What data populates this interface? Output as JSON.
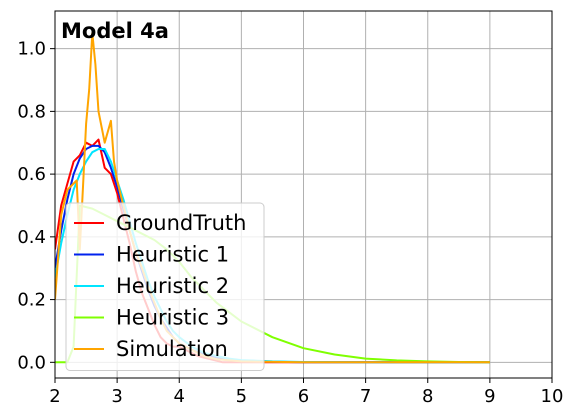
{
  "chart_data": {
    "type": "line",
    "title": "Model 4a",
    "xlabel": "",
    "ylabel": "",
    "xlim": [
      2,
      10
    ],
    "ylim": [
      -0.05,
      1.12
    ],
    "xticks": [
      2,
      3,
      4,
      5,
      6,
      7,
      8,
      9,
      10
    ],
    "yticks": [
      0.0,
      0.2,
      0.4,
      0.6,
      0.8,
      1.0
    ],
    "xtick_labels": [
      "2",
      "3",
      "4",
      "5",
      "6",
      "7",
      "8",
      "9",
      "10"
    ],
    "ytick_labels": [
      "0.0",
      "0.2",
      "0.4",
      "0.6",
      "0.8",
      "1.0"
    ],
    "grid": true,
    "legend_position": "lower-left",
    "series": [
      {
        "name": "GroundTruth",
        "color": "#ff0000",
        "x": [
          2.0,
          2.1,
          2.2,
          2.3,
          2.4,
          2.5,
          2.6,
          2.7,
          2.8,
          2.9,
          3.0,
          3.1,
          3.2,
          3.3,
          3.4,
          3.5,
          3.6,
          3.7,
          3.8,
          3.9,
          4.0,
          4.1,
          4.2,
          4.3,
          4.4,
          4.5,
          4.6,
          4.7,
          5.0,
          6.0,
          7.0,
          8.0,
          9.0
        ],
        "y": [
          0.36,
          0.5,
          0.57,
          0.64,
          0.66,
          0.7,
          0.69,
          0.71,
          0.62,
          0.6,
          0.54,
          0.46,
          0.38,
          0.29,
          0.22,
          0.17,
          0.12,
          0.08,
          0.06,
          0.05,
          0.05,
          0.04,
          0.03,
          0.02,
          0.015,
          0.01,
          0.005,
          0.0,
          0.0,
          0.0,
          0.0,
          0.0,
          0.0
        ]
      },
      {
        "name": "Heuristic 1",
        "color": "#0022ee",
        "x": [
          2.0,
          2.1,
          2.2,
          2.3,
          2.4,
          2.5,
          2.6,
          2.7,
          2.8,
          2.9,
          3.0,
          3.1,
          3.2,
          3.3,
          3.4,
          3.5,
          3.6,
          3.7,
          3.8,
          3.9,
          4.0,
          4.2,
          4.4,
          4.6,
          4.8,
          5.0,
          5.5,
          6.0,
          7.0,
          8.0,
          9.0
        ],
        "y": [
          0.3,
          0.42,
          0.52,
          0.6,
          0.65,
          0.68,
          0.69,
          0.69,
          0.67,
          0.62,
          0.56,
          0.49,
          0.42,
          0.35,
          0.29,
          0.23,
          0.18,
          0.14,
          0.11,
          0.08,
          0.06,
          0.04,
          0.025,
          0.016,
          0.01,
          0.006,
          0.002,
          0.0,
          0.0,
          0.0,
          0.0
        ]
      },
      {
        "name": "Heuristic 2",
        "color": "#00e5ff",
        "x": [
          2.0,
          2.1,
          2.2,
          2.3,
          2.4,
          2.5,
          2.6,
          2.7,
          2.8,
          2.9,
          3.0,
          3.1,
          3.2,
          3.3,
          3.4,
          3.5,
          3.6,
          3.7,
          3.8,
          3.9,
          4.0,
          4.2,
          4.4,
          4.6,
          4.8,
          5.0,
          5.5,
          6.0,
          7.0,
          8.0,
          9.0
        ],
        "y": [
          0.27,
          0.38,
          0.47,
          0.55,
          0.6,
          0.64,
          0.67,
          0.68,
          0.68,
          0.64,
          0.58,
          0.52,
          0.45,
          0.38,
          0.32,
          0.26,
          0.21,
          0.17,
          0.13,
          0.1,
          0.08,
          0.05,
          0.03,
          0.02,
          0.012,
          0.007,
          0.003,
          0.001,
          0.0,
          0.0,
          0.0
        ]
      },
      {
        "name": "Heuristic 3",
        "color": "#7fff00",
        "x": [
          2.0,
          2.1,
          2.2,
          2.3,
          2.4,
          2.6,
          2.8,
          3.0,
          3.2,
          3.4,
          3.6,
          3.8,
          4.0,
          4.2,
          4.4,
          4.6,
          4.8,
          5.0,
          5.5,
          6.0,
          6.5,
          7.0,
          7.5,
          8.0,
          8.5,
          9.0
        ],
        "y": [
          0.0,
          0.0,
          0.0,
          0.05,
          0.5,
          0.49,
          0.47,
          0.45,
          0.43,
          0.41,
          0.39,
          0.36,
          0.32,
          0.27,
          0.23,
          0.19,
          0.16,
          0.13,
          0.08,
          0.045,
          0.025,
          0.012,
          0.006,
          0.003,
          0.001,
          0.0
        ]
      },
      {
        "name": "Simulation",
        "color": "#ffa500",
        "x": [
          2.0,
          2.1,
          2.2,
          2.3,
          2.35,
          2.4,
          2.45,
          2.5,
          2.55,
          2.6,
          2.65,
          2.7,
          2.8,
          2.9,
          2.95,
          3.0,
          3.1,
          3.2,
          3.3,
          3.4,
          3.5,
          3.6,
          3.7,
          3.8,
          3.9,
          4.0,
          4.2,
          4.4,
          4.6,
          5.0,
          6.0,
          7.0,
          8.0,
          9.0
        ],
        "y": [
          0.2,
          0.47,
          0.55,
          0.57,
          0.58,
          0.36,
          0.56,
          0.76,
          0.87,
          1.05,
          0.95,
          0.8,
          0.7,
          0.77,
          0.64,
          0.58,
          0.5,
          0.42,
          0.35,
          0.3,
          0.24,
          0.19,
          0.14,
          0.1,
          0.08,
          0.06,
          0.04,
          0.02,
          0.01,
          0.003,
          0.0,
          0.0,
          0.0,
          0.0
        ]
      }
    ]
  }
}
